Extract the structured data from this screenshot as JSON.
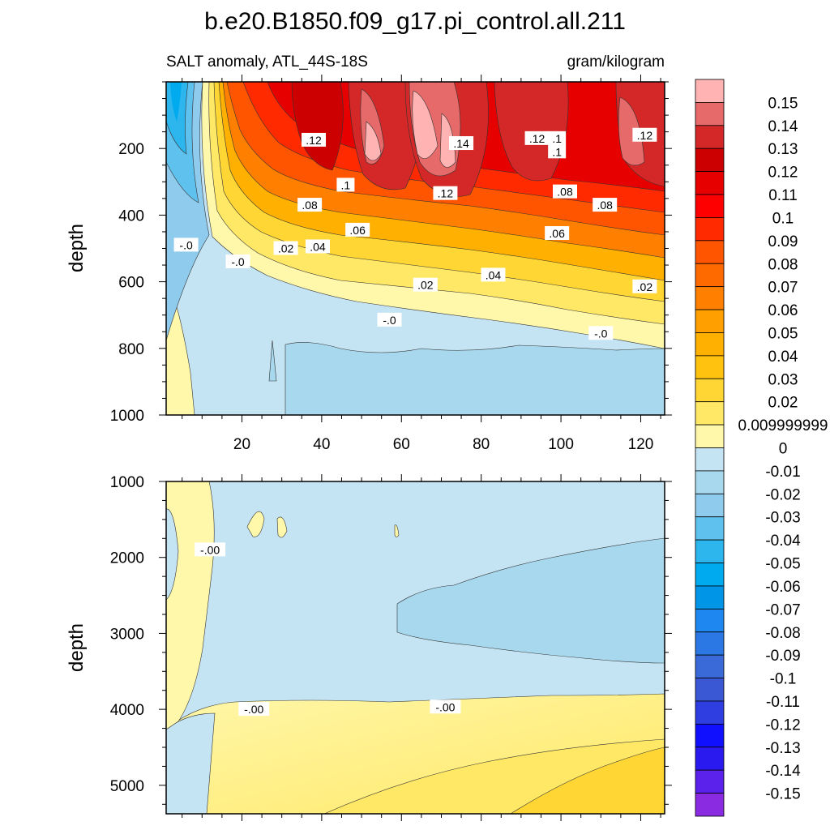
{
  "title": "b.e20.B1850.f09_g17.pi_control.all.211",
  "subtitle_left": "SALT anomaly, ATL_44S-18S",
  "subtitle_right": "gram/kilogram",
  "chart_data": {
    "type": "heatmap",
    "variable": "SALT anomaly",
    "region": "ATL_44S-18S",
    "units": "gram/kilogram",
    "x": {
      "range": [
        1,
        126
      ],
      "ticks": [
        "20",
        "40",
        "60",
        "80",
        "100",
        "120"
      ],
      "tick_values": [
        20,
        40,
        60,
        80,
        100,
        120
      ]
    },
    "panels": [
      {
        "name": "upper",
        "ylabel": "depth",
        "ylim": [
          0,
          1000
        ],
        "yticks": [
          "200",
          "400",
          "600",
          "800",
          "1000"
        ],
        "ytick_values": [
          200,
          400,
          600,
          800,
          1000
        ],
        "contour_labels": [
          {
            "text": ".12",
            "x": 38,
            "y": 175
          },
          {
            "text": ".14",
            "x": 75,
            "y": 185
          },
          {
            "text": ".12",
            "x": 94,
            "y": 170
          },
          {
            "text": ".1",
            "x": 99,
            "y": 170
          },
          {
            "text": ".1",
            "x": 99,
            "y": 210
          },
          {
            "text": ".12",
            "x": 121,
            "y": 160
          },
          {
            "text": ".1",
            "x": 46,
            "y": 310
          },
          {
            "text": ".12",
            "x": 71,
            "y": 335
          },
          {
            "text": ".08",
            "x": 37,
            "y": 370
          },
          {
            "text": ".08",
            "x": 101,
            "y": 330
          },
          {
            "text": ".08",
            "x": 111,
            "y": 370
          },
          {
            "text": ".06",
            "x": 49,
            "y": 445
          },
          {
            "text": ".06",
            "x": 99,
            "y": 455
          },
          {
            "text": ".02",
            "x": 31,
            "y": 500
          },
          {
            "text": ".04",
            "x": 39,
            "y": 495
          },
          {
            "text": "-.0",
            "x": 6,
            "y": 490
          },
          {
            "text": "-.0",
            "x": 19,
            "y": 540
          },
          {
            "text": ".04",
            "x": 83,
            "y": 580
          },
          {
            "text": ".02",
            "x": 66,
            "y": 610
          },
          {
            "text": ".02",
            "x": 121,
            "y": 615
          },
          {
            "text": "-.0",
            "x": 57,
            "y": 715
          },
          {
            "text": "-.0",
            "x": 110,
            "y": 755
          }
        ]
      },
      {
        "name": "lower",
        "ylabel": "depth",
        "ylim": [
          1000,
          5375
        ],
        "yticks": [
          "1000",
          "2000",
          "3000",
          "4000",
          "5000"
        ],
        "ytick_values": [
          1000,
          2000,
          3000,
          4000,
          5000
        ],
        "contour_labels": [
          {
            "text": "-.00",
            "x": 12,
            "y": 1900
          },
          {
            "text": "-.00",
            "x": 23,
            "y": 4000
          },
          {
            "text": "-.00",
            "x": 71,
            "y": 3970
          }
        ]
      }
    ],
    "colorbar": {
      "labels": [
        "0.15",
        "0.14",
        "0.13",
        "0.12",
        "0.11",
        "0.1",
        "0.09",
        "0.08",
        "0.07",
        "0.06",
        "0.05",
        "0.04",
        "0.03",
        "0.02",
        "0.009999999",
        "0",
        "-0.01",
        "-0.02",
        "-0.03",
        "-0.04",
        "-0.05",
        "-0.06",
        "-0.07",
        "-0.08",
        "-0.09",
        "-0.1",
        "-0.11",
        "-0.12",
        "-0.13",
        "-0.14",
        "-0.15"
      ],
      "colors": [
        "#ffb3b3",
        "#e66a6a",
        "#d42828",
        "#cc0000",
        "#e60000",
        "#ff0000",
        "#ff2a00",
        "#ff5500",
        "#ff6a00",
        "#ff7f00",
        "#ff9f00",
        "#ffb000",
        "#ffc20e",
        "#ffd633",
        "#ffe866",
        "#fff7aa",
        "#c5e4f3",
        "#a8d8ee",
        "#8ecbec",
        "#5fc1ee",
        "#2db5ee",
        "#00aaee",
        "#0095e6",
        "#1e87f0",
        "#2b78e4",
        "#3a6ad8",
        "#3a58d4",
        "#2f3ee0",
        "#1010ff",
        "#2a1af0",
        "#5a22ea",
        "#8a2be2"
      ]
    }
  }
}
